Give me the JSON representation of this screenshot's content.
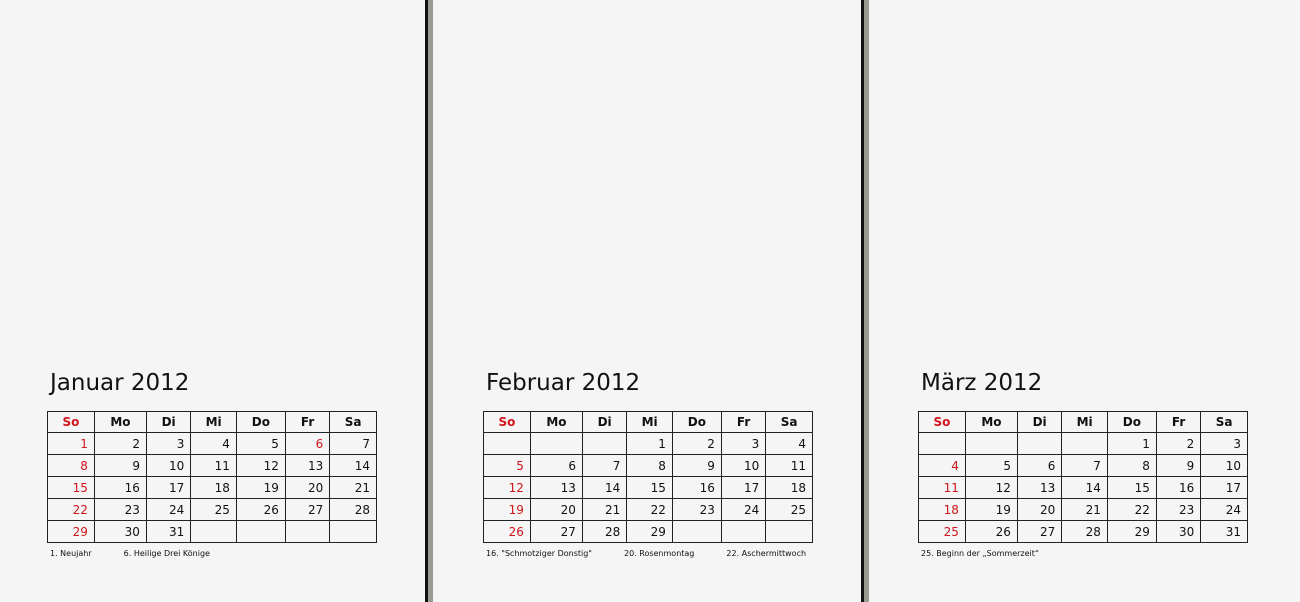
{
  "weekdays": [
    "So",
    "Mo",
    "Di",
    "Mi",
    "Do",
    "Fr",
    "Sa"
  ],
  "colors": {
    "sunday_holiday": "#d0151c"
  },
  "months": [
    {
      "title": "Januar 2012",
      "rows": [
        [
          "1",
          "2",
          "3",
          "4",
          "5",
          "6",
          "7"
        ],
        [
          "8",
          "9",
          "10",
          "11",
          "12",
          "13",
          "14"
        ],
        [
          "15",
          "16",
          "17",
          "18",
          "19",
          "20",
          "21"
        ],
        [
          "22",
          "23",
          "24",
          "25",
          "26",
          "27",
          "28"
        ],
        [
          "29",
          "30",
          "31",
          "",
          "",
          "",
          ""
        ]
      ],
      "holidays": [
        "6"
      ],
      "notes": [
        "1. Neujahr",
        "6. Heilige Drei Könige"
      ]
    },
    {
      "title": "Februar 2012",
      "rows": [
        [
          "",
          "",
          "",
          "1",
          "2",
          "3",
          "4"
        ],
        [
          "5",
          "6",
          "7",
          "8",
          "9",
          "10",
          "11"
        ],
        [
          "12",
          "13",
          "14",
          "15",
          "16",
          "17",
          "18"
        ],
        [
          "19",
          "20",
          "21",
          "22",
          "23",
          "24",
          "25"
        ],
        [
          "26",
          "27",
          "28",
          "29",
          "",
          "",
          ""
        ]
      ],
      "holidays": [],
      "notes": [
        "16. \"Schmotziger Donstig\"",
        "20. Rosenmontag",
        "22. Aschermittwoch"
      ]
    },
    {
      "title": "März 2012",
      "rows": [
        [
          "",
          "",
          "",
          "",
          "1",
          "2",
          "3"
        ],
        [
          "4",
          "5",
          "6",
          "7",
          "8",
          "9",
          "10"
        ],
        [
          "11",
          "12",
          "13",
          "14",
          "15",
          "16",
          "17"
        ],
        [
          "18",
          "19",
          "20",
          "21",
          "22",
          "23",
          "24"
        ],
        [
          "25",
          "26",
          "27",
          "28",
          "29",
          "30",
          "31"
        ]
      ],
      "holidays": [],
      "notes": [
        "25. Beginn der „Sommerzeit“"
      ]
    }
  ]
}
